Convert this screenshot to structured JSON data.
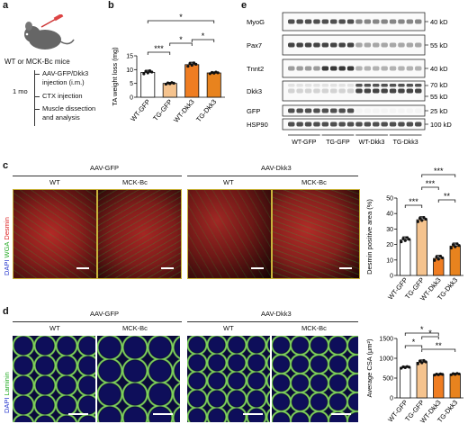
{
  "panels": {
    "a": {
      "label": "a",
      "mice_label": "WT or MCK-Bc mice",
      "timeline": [
        "AAV-GFP/Dkk3",
        "injection (i.m.)",
        "CTX injection",
        "Muscle dissection",
        "and analysis"
      ],
      "duration": "1 mo"
    },
    "b": {
      "label": "b"
    },
    "c": {
      "label": "c",
      "group_headers": [
        "AAV-GFP",
        "AAV-Dkk3"
      ],
      "subheaders": [
        "WT",
        "MCK-Bc",
        "WT",
        "MCK-Bc"
      ],
      "stain_labels": [
        "DAPI",
        "WGA",
        "Desmin"
      ],
      "stain_colors": [
        "#2233cc",
        "#22aa22",
        "#dd2222"
      ]
    },
    "d": {
      "label": "d",
      "group_headers": [
        "AAV-GFP",
        "AAV-Dkk3"
      ],
      "subheaders": [
        "WT",
        "MCK-Bc",
        "WT",
        "MCK-Bc"
      ],
      "stain_labels": [
        "DAPI",
        "Laminin"
      ],
      "stain_colors": [
        "#2233cc",
        "#22aa22"
      ]
    },
    "e": {
      "label": "e",
      "blots": [
        {
          "protein": "MyoG",
          "sizes": [
            "40 kD"
          ]
        },
        {
          "protein": "Pax7",
          "sizes": [
            "55 kD"
          ]
        },
        {
          "protein": "Tnnt2",
          "sizes": [
            "40 kD"
          ]
        },
        {
          "protein": "Dkk3",
          "sizes": [
            "70 kD",
            "55 kD"
          ]
        },
        {
          "protein": "GFP",
          "sizes": [
            "25 kD"
          ]
        },
        {
          "protein": "HSP90",
          "sizes": [
            "100 kD"
          ]
        }
      ],
      "lane_groups": [
        "WT-GFP",
        "TG-GFP",
        "WT-Dkk3",
        "TG-Dkk3"
      ]
    }
  },
  "chart_data": [
    {
      "type": "bar",
      "panel": "b",
      "categories": [
        "WT-GFP",
        "TG-GFP",
        "WT-Dkk3",
        "TG-Dkk3"
      ],
      "values": [
        9.0,
        5.0,
        11.8,
        8.8
      ],
      "errors": [
        0.8,
        0.4,
        0.9,
        0.4
      ],
      "ylabel": "TA weight loss (mg)",
      "ylim": [
        0,
        15
      ],
      "yticks": [
        0,
        5,
        10,
        15
      ],
      "colors": [
        "#ffffff",
        "#f5c38e",
        "#ef7d22",
        "#e8831e"
      ],
      "significance": [
        {
          "from": 0,
          "to": 1,
          "label": "***"
        },
        {
          "from": 1,
          "to": 2,
          "label": "*"
        },
        {
          "from": 2,
          "to": 3,
          "label": "*"
        },
        {
          "from": 0,
          "to": 3,
          "label": "*"
        }
      ]
    },
    {
      "type": "bar",
      "panel": "c",
      "categories": [
        "WT-GFP",
        "TG-GFP",
        "WT-Dkk3",
        "TG-Dkk3"
      ],
      "values": [
        23,
        36,
        11,
        19
      ],
      "errors": [
        2,
        2,
        2,
        2
      ],
      "ylabel": "Desmin positive area (%)",
      "ylim": [
        0,
        50
      ],
      "yticks": [
        0,
        10,
        20,
        30,
        40,
        50
      ],
      "colors": [
        "#ffffff",
        "#f5c38e",
        "#ef7d22",
        "#e8831e"
      ],
      "significance": [
        {
          "from": 0,
          "to": 1,
          "label": "***"
        },
        {
          "from": 1,
          "to": 2,
          "label": "***"
        },
        {
          "from": 2,
          "to": 3,
          "label": "**"
        },
        {
          "from": 1,
          "to": 3,
          "label": "***"
        }
      ]
    },
    {
      "type": "bar",
      "panel": "d",
      "categories": [
        "WT-GFP",
        "TG-GFP",
        "WT-Dkk3",
        "TG-Dkk3"
      ],
      "values": [
        770,
        900,
        590,
        600
      ],
      "errors": [
        30,
        60,
        20,
        25
      ],
      "ylabel": "Average CSA (μm²)",
      "ylim": [
        0,
        1500
      ],
      "yticks": [
        0,
        500,
        1000,
        1500
      ],
      "colors": [
        "#ffffff",
        "#f5c38e",
        "#ef7d22",
        "#e8831e"
      ],
      "significance": [
        {
          "from": 0,
          "to": 1,
          "label": "*"
        },
        {
          "from": 1,
          "to": 2,
          "label": "*"
        },
        {
          "from": 1,
          "to": 3,
          "label": "**"
        },
        {
          "from": 0,
          "to": 2,
          "label": "*"
        }
      ]
    }
  ]
}
